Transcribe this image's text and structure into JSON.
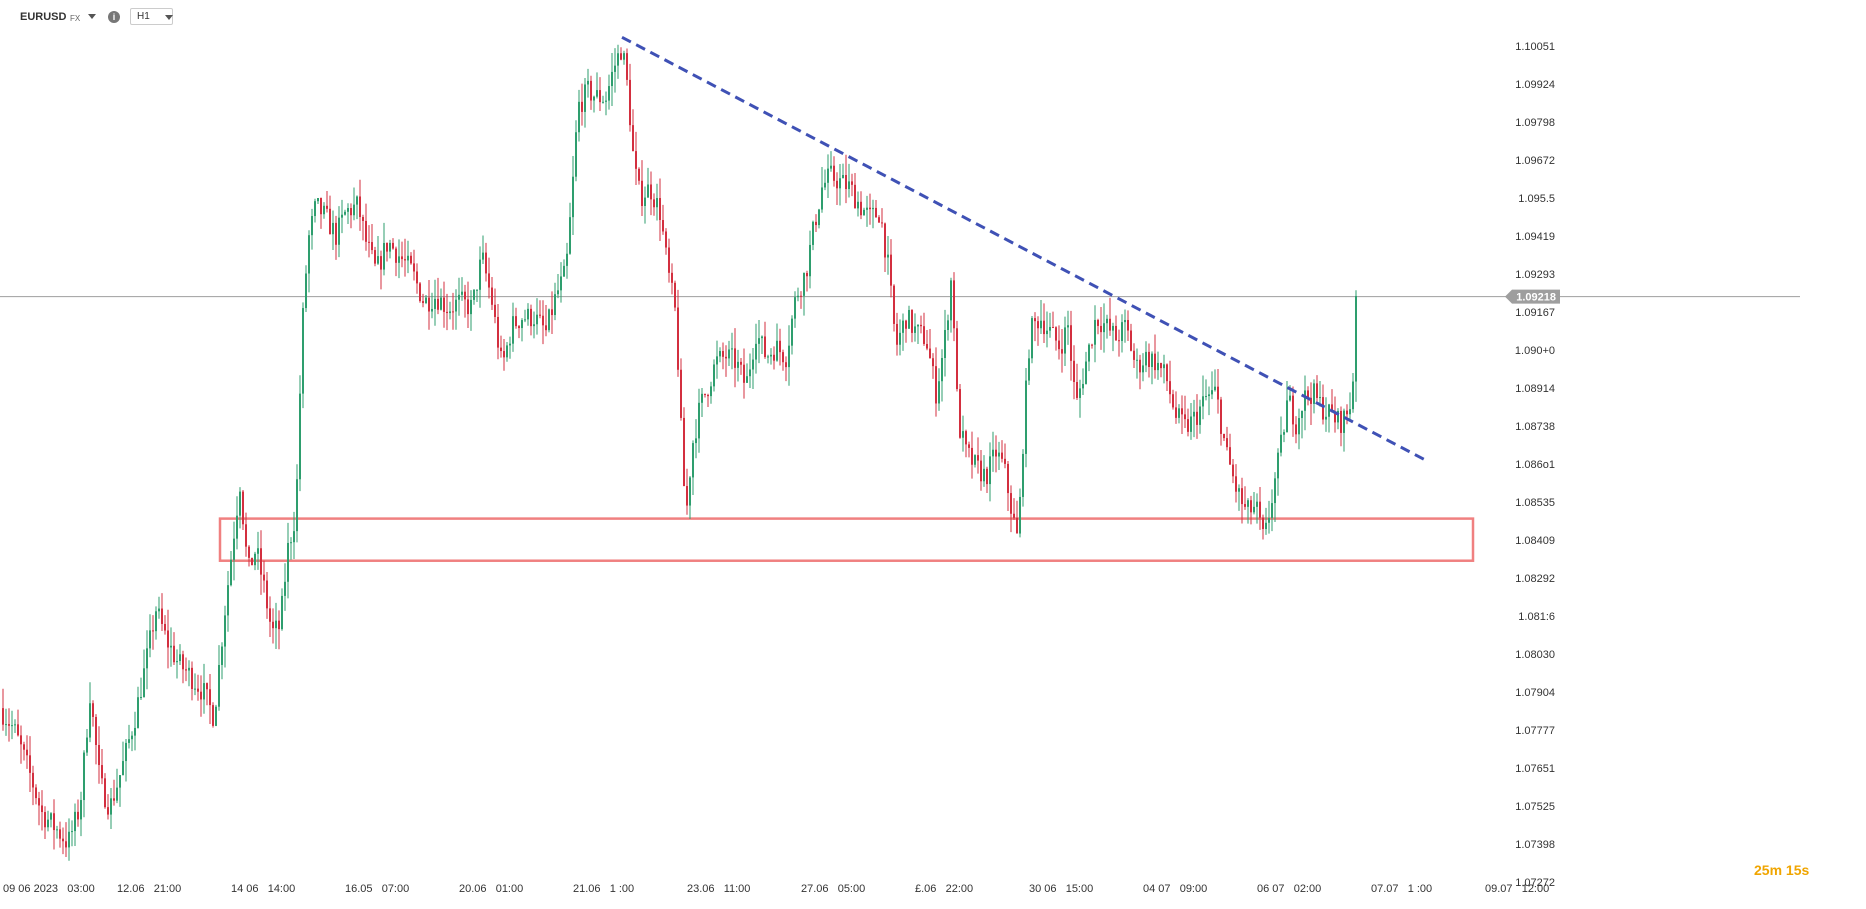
{
  "header": {
    "symbol": "EURUSD",
    "exchange": "FX",
    "info_icon": "info-icon",
    "timeframe": "H1"
  },
  "timer": "25m 15s",
  "colors": {
    "up": "#2e9e6e",
    "down": "#d32f3f",
    "trendline": "#3f51b5",
    "support_zone": "#f08080",
    "price_line": "#9e9e9e",
    "price_tag": "#9e9e9e"
  },
  "chart_data": {
    "type": "candlestick",
    "symbol": "EURUSD",
    "timeframe": "H1",
    "current_price": "1.09218",
    "y_ticks": [
      "1.10051",
      "1.09924",
      "1.09798",
      "1.09672",
      "1.095.5",
      "1.09419",
      "1.09293",
      "1.09167",
      "1.090+0",
      "1.08914",
      "1.08738",
      "1.086o1",
      "1.08535",
      "1.08409",
      "1.08292",
      "1.081:6",
      "1.08030",
      "1.07904",
      "1.07777",
      "1.07651",
      "1.07525",
      "1.07398",
      "1.07272"
    ],
    "ylim": [
      1.0727,
      1.1017
    ],
    "x_ticks": [
      "09 06 2023   03:00",
      "12.06   21:00",
      "14 06   14:00",
      "16.05   07:00",
      "20.06   01:00",
      "21.06   1 :00",
      "23.06   11:00",
      "27.06   05:00",
      "£.06   22:00",
      "30 06   15:00",
      "04 07   09:00",
      "06 07   02:00",
      "07.07   1 :00",
      "09.07   12:00"
    ],
    "path": [
      [
        0,
        1.0785
      ],
      [
        14,
        1.0778
      ],
      [
        28,
        1.0765
      ],
      [
        42,
        1.075
      ],
      [
        56,
        1.0745
      ],
      [
        68,
        1.074
      ],
      [
        80,
        1.0752
      ],
      [
        90,
        1.079
      ],
      [
        100,
        1.076
      ],
      [
        110,
        1.0752
      ],
      [
        122,
        1.0765
      ],
      [
        135,
        1.0782
      ],
      [
        146,
        1.08
      ],
      [
        156,
        1.0818
      ],
      [
        166,
        1.0808
      ],
      [
        178,
        1.08
      ],
      [
        190,
        1.0796
      ],
      [
        204,
        1.079
      ],
      [
        214,
        1.0782
      ],
      [
        224,
        1.0815
      ],
      [
        232,
        1.0838
      ],
      [
        240,
        1.086
      ],
      [
        248,
        1.083
      ],
      [
        256,
        1.0838
      ],
      [
        264,
        1.0825
      ],
      [
        272,
        1.081
      ],
      [
        280,
        1.0812
      ],
      [
        288,
        1.0838
      ],
      [
        296,
        1.085
      ],
      [
        302,
        1.091
      ],
      [
        308,
        1.094
      ],
      [
        316,
        1.0952
      ],
      [
        326,
        1.0948
      ],
      [
        336,
        1.0942
      ],
      [
        346,
        1.095
      ],
      [
        358,
        1.0952
      ],
      [
        366,
        1.094
      ],
      [
        376,
        1.093
      ],
      [
        388,
        1.094
      ],
      [
        400,
        1.0935
      ],
      [
        412,
        1.093
      ],
      [
        424,
        1.092
      ],
      [
        436,
        1.0922
      ],
      [
        448,
        1.0918
      ],
      [
        460,
        1.092
      ],
      [
        472,
        1.0918
      ],
      [
        482,
        1.0935
      ],
      [
        492,
        1.092
      ],
      [
        502,
        1.0898
      ],
      [
        512,
        1.0912
      ],
      [
        522,
        1.0915
      ],
      [
        534,
        1.0915
      ],
      [
        546,
        1.091
      ],
      [
        556,
        1.0922
      ],
      [
        566,
        1.093
      ],
      [
        572,
        1.0955
      ],
      [
        578,
        1.0985
      ],
      [
        588,
        1.099
      ],
      [
        598,
        1.0988
      ],
      [
        606,
        1.0988
      ],
      [
        614,
        1.0998
      ],
      [
        622,
        1.1005
      ],
      [
        628,
        1.099
      ],
      [
        634,
        1.0965
      ],
      [
        640,
        1.0955
      ],
      [
        650,
        1.0958
      ],
      [
        660,
        1.095
      ],
      [
        668,
        1.093
      ],
      [
        676,
        1.0915
      ],
      [
        682,
        1.087
      ],
      [
        686,
        1.0848
      ],
      [
        692,
        1.0872
      ],
      [
        700,
        1.0885
      ],
      [
        708,
        1.0892
      ],
      [
        716,
        1.09
      ],
      [
        726,
        1.0902
      ],
      [
        736,
        1.09
      ],
      [
        746,
        1.0892
      ],
      [
        756,
        1.091
      ],
      [
        766,
        1.0902
      ],
      [
        776,
        1.0905
      ],
      [
        786,
        1.0902
      ],
      [
        796,
        1.0922
      ],
      [
        806,
        1.093
      ],
      [
        814,
        1.0945
      ],
      [
        822,
        1.0958
      ],
      [
        830,
        1.0962
      ],
      [
        840,
        1.096
      ],
      [
        850,
        1.0958
      ],
      [
        860,
        1.0952
      ],
      [
        870,
        1.0948
      ],
      [
        880,
        1.095
      ],
      [
        888,
        1.0932
      ],
      [
        896,
        1.0905
      ],
      [
        906,
        1.0915
      ],
      [
        916,
        1.091
      ],
      [
        926,
        1.0908
      ],
      [
        936,
        1.089
      ],
      [
        944,
        1.0905
      ],
      [
        952,
        1.093
      ],
      [
        958,
        1.088
      ],
      [
        966,
        1.087
      ],
      [
        976,
        1.0865
      ],
      [
        986,
        1.0862
      ],
      [
        996,
        1.087
      ],
      [
        1004,
        1.0865
      ],
      [
        1012,
        1.085
      ],
      [
        1018,
        1.084
      ],
      [
        1024,
        1.088
      ],
      [
        1030,
        1.091
      ],
      [
        1040,
        1.0915
      ],
      [
        1050,
        1.091
      ],
      [
        1060,
        1.0905
      ],
      [
        1068,
        1.0912
      ],
      [
        1076,
        1.0885
      ],
      [
        1086,
        1.09
      ],
      [
        1096,
        1.0915
      ],
      [
        1106,
        1.0912
      ],
      [
        1116,
        1.0908
      ],
      [
        1126,
        1.0912
      ],
      [
        1136,
        1.0898
      ],
      [
        1146,
        1.0902
      ],
      [
        1156,
        1.09
      ],
      [
        1166,
        1.0895
      ],
      [
        1176,
        1.0882
      ],
      [
        1186,
        1.0878
      ],
      [
        1196,
        1.0882
      ],
      [
        1206,
        1.0888
      ],
      [
        1216,
        1.089
      ],
      [
        1226,
        1.087
      ],
      [
        1236,
        1.0858
      ],
      [
        1246,
        1.085
      ],
      [
        1256,
        1.0852
      ],
      [
        1264,
        1.084
      ],
      [
        1272,
        1.0855
      ],
      [
        1280,
        1.087
      ],
      [
        1288,
        1.0888
      ],
      [
        1296,
        1.088
      ],
      [
        1304,
        1.0888
      ],
      [
        1312,
        1.089
      ],
      [
        1322,
        1.0885
      ],
      [
        1332,
        1.0882
      ],
      [
        1340,
        1.088
      ],
      [
        1346,
        1.0882
      ],
      [
        1352,
        1.0888
      ],
      [
        1357,
        1.0922
      ]
    ],
    "annotations": {
      "trendline": {
        "from": [
          622,
          1.1008
        ],
        "to": [
          1428,
          1.0867
        ],
        "style": "dashed"
      },
      "support_zone": {
        "from": [
          220,
          1.0848
        ],
        "to": [
          1473,
          1.0834
        ]
      },
      "price_line": 1.09218
    },
    "grid": false
  }
}
